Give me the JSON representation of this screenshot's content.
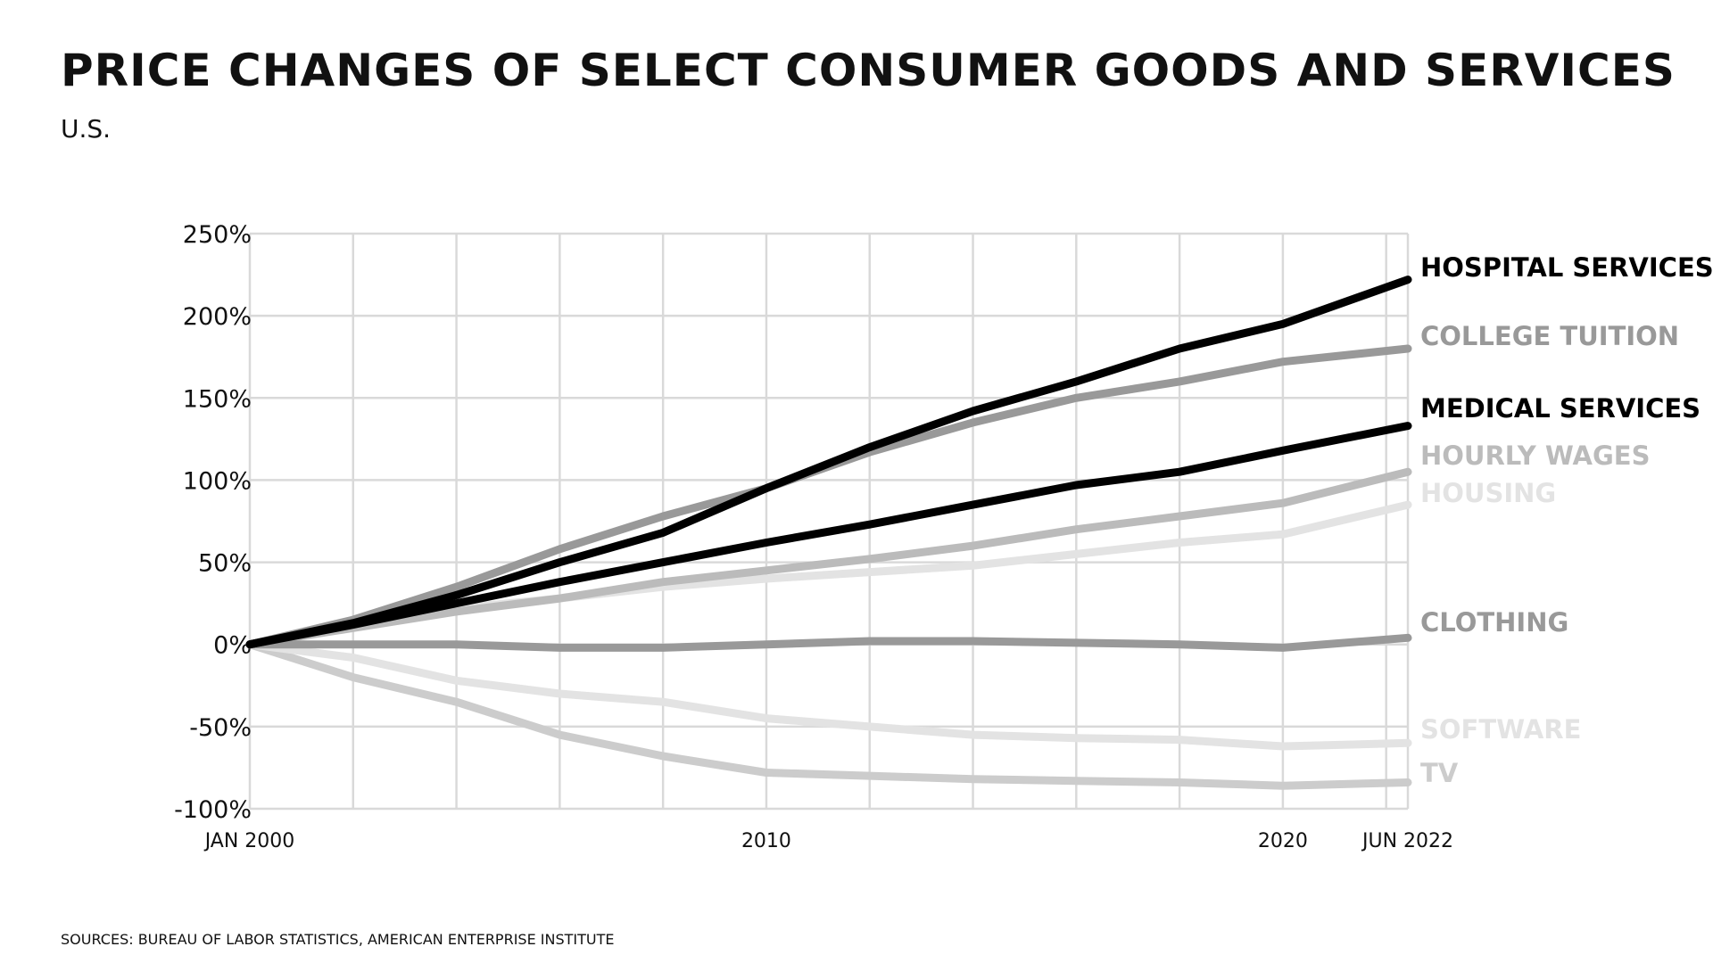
{
  "header": {
    "title": "PRICE CHANGES OF SELECT CONSUMER GOODS AND SERVICES",
    "subtitle": "U.S."
  },
  "footer": {
    "source": "SOURCES: BUREAU OF LABOR STATISTICS, AMERICAN ENTERPRISE INSTITUTE"
  },
  "chart_data": {
    "type": "line",
    "title": "PRICE CHANGES OF SELECT CONSUMER GOODS AND SERVICES",
    "subtitle": "U.S.",
    "xlabel": "",
    "ylabel": "",
    "xlim": [
      2000.0,
      2022.42
    ],
    "ylim": [
      -100,
      250
    ],
    "y_ticks": [
      250,
      200,
      150,
      100,
      50,
      0,
      -50,
      -100
    ],
    "y_tick_labels": [
      "250%",
      "200%",
      "150%",
      "100%",
      "50%",
      "0%",
      "-50%",
      "-100%"
    ],
    "x_ticks": [
      2000,
      2010,
      2020,
      2022.42
    ],
    "x_tick_labels": [
      "JAN 2000",
      "2010",
      "2020",
      "JUN 2022"
    ],
    "grid": true,
    "legend": "direct labels at right end of lines",
    "x": [
      2000,
      2002,
      2004,
      2006,
      2008,
      2010,
      2012,
      2014,
      2016,
      2018,
      2020,
      2022.42
    ],
    "series": [
      {
        "name": "HOSPITAL SERVICES",
        "color": "#000000",
        "values": [
          0,
          13,
          30,
          50,
          68,
          95,
          120,
          142,
          160,
          180,
          195,
          222
        ]
      },
      {
        "name": "COLLEGE TUITION",
        "color": "#999999",
        "values": [
          0,
          15,
          35,
          58,
          78,
          95,
          117,
          135,
          150,
          160,
          172,
          180
        ]
      },
      {
        "name": "MEDICAL SERVICES",
        "color": "#000000",
        "values": [
          0,
          12,
          25,
          38,
          50,
          62,
          73,
          85,
          97,
          105,
          118,
          133
        ]
      },
      {
        "name": "HOURLY WAGES",
        "color": "#bbbbbb",
        "values": [
          0,
          10,
          20,
          28,
          38,
          45,
          52,
          60,
          70,
          78,
          86,
          105
        ]
      },
      {
        "name": "HOUSING",
        "color": "#e3e3e3",
        "values": [
          0,
          12,
          22,
          28,
          35,
          40,
          44,
          48,
          55,
          62,
          67,
          85
        ]
      },
      {
        "name": "CLOTHING",
        "color": "#999999",
        "values": [
          0,
          0,
          0,
          -2,
          -2,
          0,
          2,
          2,
          1,
          0,
          -2,
          4
        ]
      },
      {
        "name": "SOFTWARE",
        "color": "#e3e3e3",
        "values": [
          0,
          -8,
          -22,
          -30,
          -35,
          -45,
          -50,
          -55,
          -57,
          -58,
          -62,
          -60
        ]
      },
      {
        "name": "TV",
        "color": "#cccccc",
        "values": [
          0,
          -20,
          -35,
          -55,
          -68,
          -78,
          -80,
          -82,
          -83,
          -84,
          -86,
          -84
        ]
      }
    ]
  }
}
